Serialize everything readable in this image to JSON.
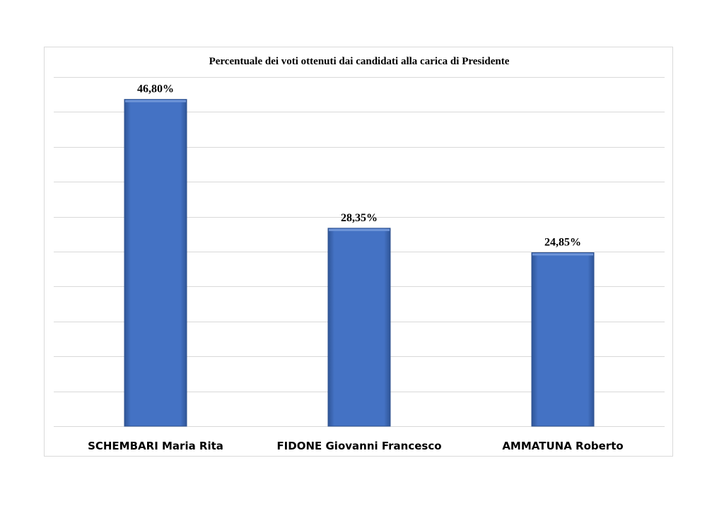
{
  "chart_data": {
    "type": "bar",
    "title": "Percentuale dei voti ottenuti dai candidati alla carica di Presidente",
    "categories": [
      "SCHEMBARI Maria Rita",
      "FIDONE Giovanni Francesco",
      "AMMATUNA Roberto"
    ],
    "values": [
      46.8,
      28.35,
      24.85
    ],
    "data_labels": [
      "46,80%",
      "28,35%",
      "24,85%"
    ],
    "xlabel": "",
    "ylabel": "",
    "ylim": [
      0,
      50
    ],
    "grid": true,
    "legend": "none",
    "colors": {
      "bar": "#4472c4",
      "bar_edge": "#2f528f",
      "grid": "#d9d9d9"
    }
  }
}
